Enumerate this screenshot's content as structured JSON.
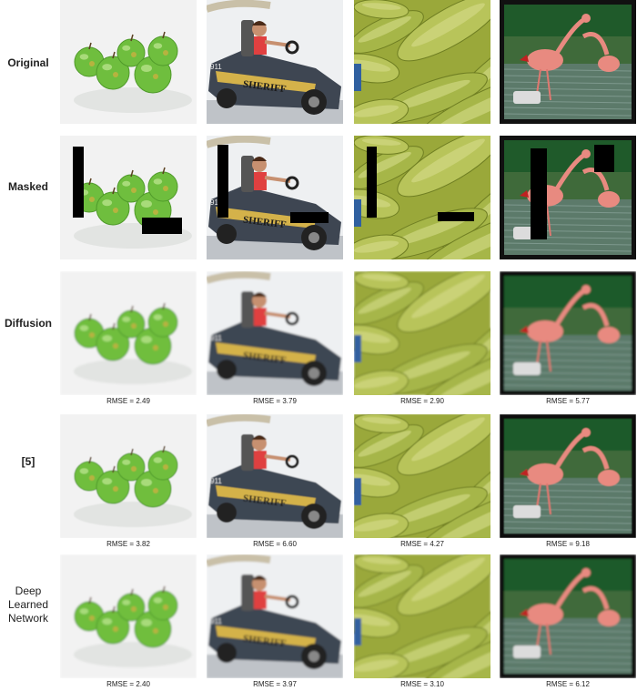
{
  "figure": {
    "rows": [
      {
        "label": "Original",
        "rmse": [
          "",
          "",
          "",
          ""
        ],
        "masked": false,
        "blur": 0
      },
      {
        "label": "Masked",
        "rmse": [
          "",
          "",
          "",
          ""
        ],
        "masked": true,
        "blur": 0
      },
      {
        "label": "Diffusion",
        "rmse": [
          "RMSE = 2.49",
          "RMSE = 3.79",
          "RMSE = 2.90",
          "RMSE = 5.77"
        ],
        "masked": false,
        "blur": 2
      },
      {
        "label": "[5]",
        "rmse": [
          "RMSE = 3.82",
          "RMSE = 6.60",
          "RMSE = 4.27",
          "RMSE = 9.18"
        ],
        "masked": false,
        "blur": 1
      },
      {
        "label": "Deep Learned Network",
        "rmse": [
          "RMSE = 2.40",
          "RMSE = 3.97",
          "RMSE = 3.10",
          "RMSE = 6.12"
        ],
        "masked": false,
        "blur": 2
      }
    ],
    "columns": [
      {
        "subject": "apples-icon"
      },
      {
        "subject": "go-kart-icon"
      },
      {
        "subject": "zucchini-icon"
      },
      {
        "subject": "flamingo-icon"
      }
    ],
    "kart_text": "SHERIFF",
    "kart_number": "911"
  }
}
